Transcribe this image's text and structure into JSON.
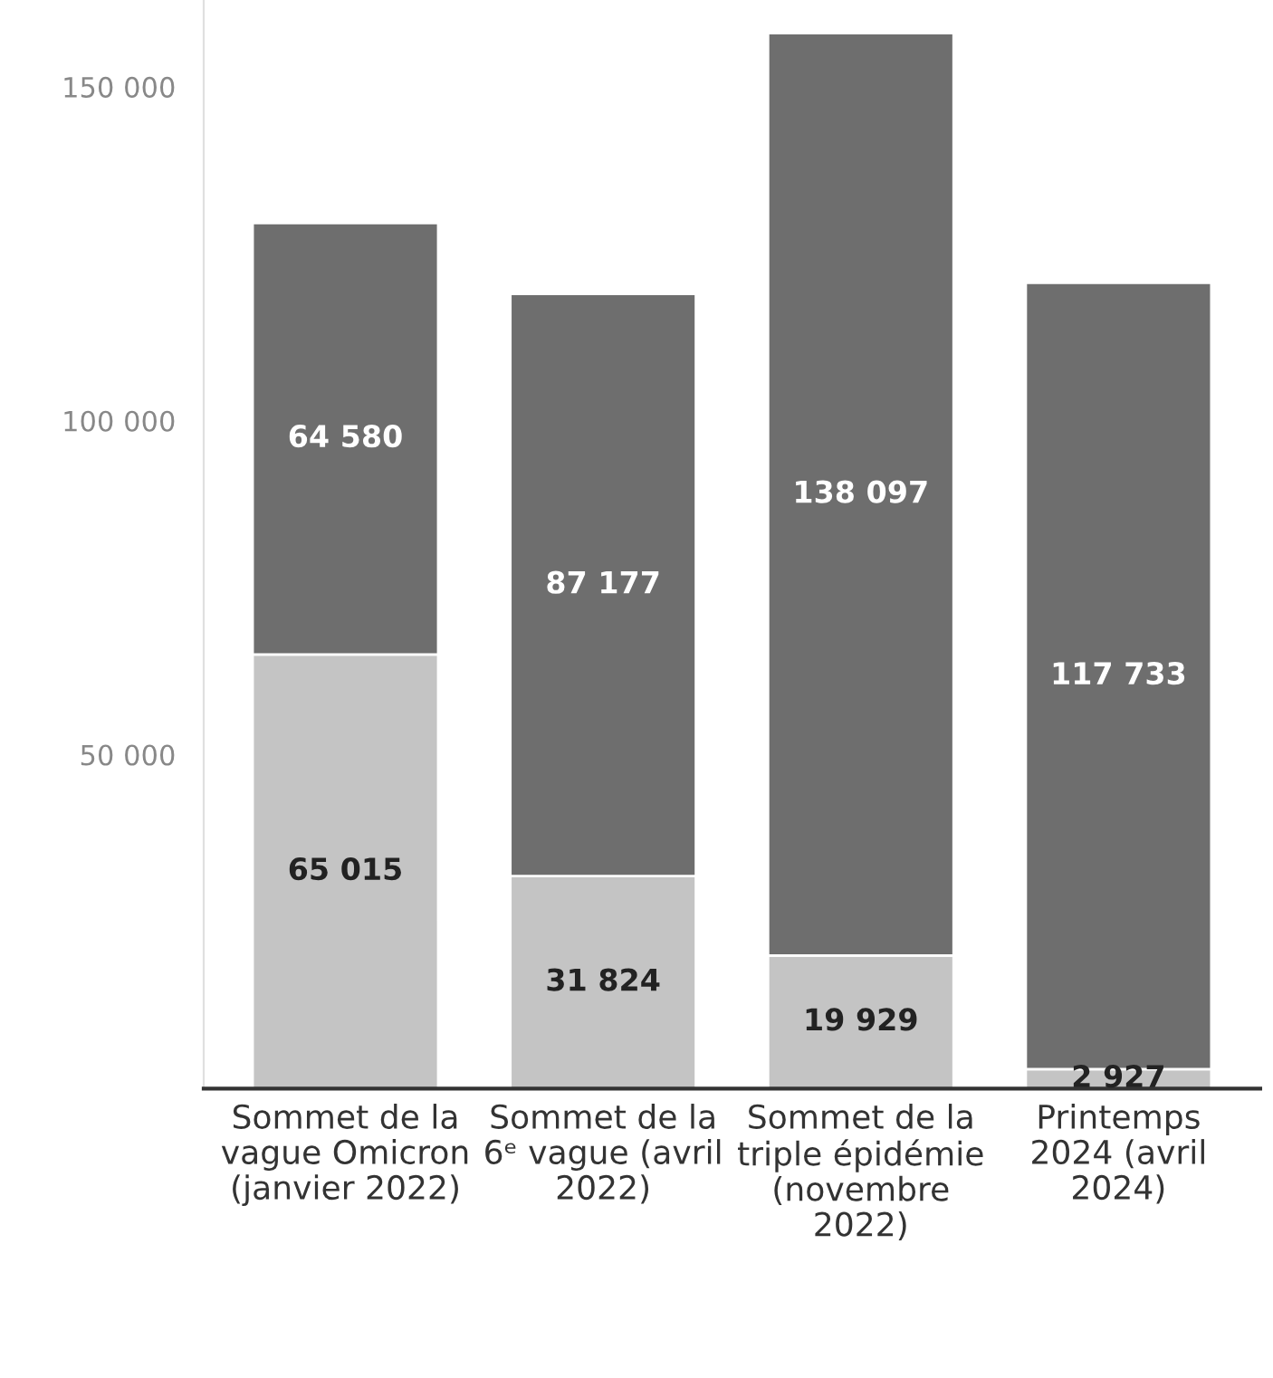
{
  "chart_data": {
    "type": "bar",
    "stacked": true,
    "categories": [
      "Sommet de la vague Omicron (janvier 2022)",
      "Sommet de la 6ᵉ vague (avril 2022)",
      "Sommet de la triple épidémie (novembre 2022)",
      "Printemps 2024 (avril 2024)"
    ],
    "series": [
      {
        "color": "#c4c4c4",
        "values": [
          65015,
          31824,
          19929,
          2927
        ],
        "value_labels": [
          "65 015",
          "31 824",
          "19 929",
          "2 927"
        ]
      },
      {
        "color": "#6e6e6e",
        "values": [
          64580,
          87177,
          138097,
          117733
        ],
        "value_labels": [
          "64 580",
          "87 177",
          "138 097",
          "117 733"
        ]
      }
    ],
    "ylim": [
      0,
      163000
    ],
    "yticks": [
      {
        "value": 50000,
        "label": "50 000"
      },
      {
        "value": 100000,
        "label": "100 000"
      },
      {
        "value": 150000,
        "label": "150 000"
      }
    ],
    "grid": false,
    "legend": false
  }
}
